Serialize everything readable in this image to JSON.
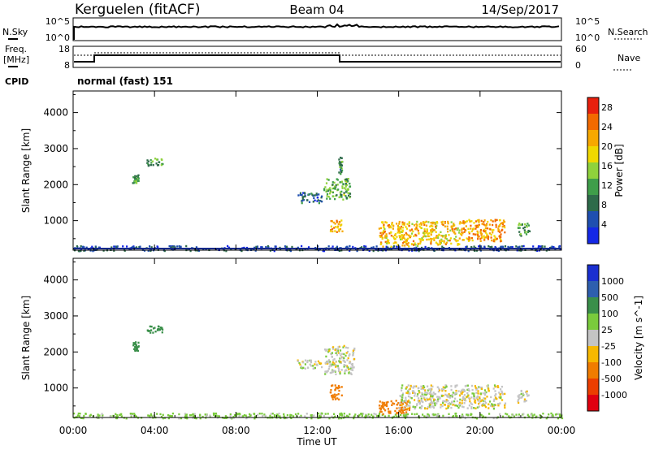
{
  "header": {
    "station": "Kerguelen (fitACF)",
    "beam": "Beam 04",
    "date": "14/Sep/2017"
  },
  "status_panel": {
    "nsky_label": "N.Sky",
    "nsky_ticks": [
      "10^5",
      "10^0"
    ],
    "nsearch_label": "N.Search",
    "nsearch_ticks": [
      "10^5",
      "10^0"
    ],
    "freq_label": "Freq.",
    "freq_unit": "[MHz]",
    "freq_ticks": [
      "18",
      "8"
    ],
    "nave_label": "Nave",
    "nave_ticks": [
      "60",
      "0"
    ],
    "cpid_label": "CPID",
    "cpid_value": "normal (fast) 151"
  },
  "colors": {
    "power": [
      "#1428e6",
      "#1f4fb0",
      "#2e6b4a",
      "#3f9e4a",
      "#8fd23c",
      "#f0d800",
      "#f7a800",
      "#f26a00",
      "#e8200e"
    ],
    "velocity": [
      "#1a2fd0",
      "#2e5fae",
      "#3a8f4a",
      "#7acb3c",
      "#c4c4c4",
      "#f7b800",
      "#f07c00",
      "#ec3e00",
      "#e00010"
    ]
  },
  "chart_data": [
    {
      "type": "heatmap",
      "title": "Power",
      "xlabel": "Time UT",
      "ylabel": "Slant Range [km]",
      "x_ticks": [
        "00:00",
        "04:00",
        "08:00",
        "12:00",
        "16:00",
        "20:00",
        "00:00"
      ],
      "y_ticks": [
        "1000",
        "2000",
        "3000",
        "4000"
      ],
      "x_range": [
        0,
        24
      ],
      "y_range": [
        180,
        4600
      ],
      "colorbar": {
        "label": "Power [dB]",
        "ticks": [
          "4",
          "8",
          "12",
          "16",
          "20",
          "24",
          "28"
        ],
        "range": [
          0,
          30
        ]
      },
      "echo_regions": [
        {
          "t": [
            2.9,
            3.2
          ],
          "r": [
            2050,
            2300
          ],
          "level": 10
        },
        {
          "t": [
            3.6,
            4.4
          ],
          "r": [
            2550,
            2750
          ],
          "level": 11
        },
        {
          "t": [
            0.0,
            24.0
          ],
          "r": [
            180,
            320
          ],
          "level": 4
        },
        {
          "t": [
            11.0,
            12.2
          ],
          "r": [
            1500,
            1800
          ],
          "level": 6
        },
        {
          "t": [
            12.3,
            13.6
          ],
          "r": [
            1600,
            2200
          ],
          "level": 12
        },
        {
          "t": [
            12.6,
            13.2
          ],
          "r": [
            700,
            1100
          ],
          "level": 22
        },
        {
          "t": [
            13.0,
            13.2
          ],
          "r": [
            2300,
            2800
          ],
          "level": 10
        },
        {
          "t": [
            15.0,
            17.0
          ],
          "r": [
            300,
            1000
          ],
          "level": 21
        },
        {
          "t": [
            17.0,
            19.0
          ],
          "r": [
            350,
            1000
          ],
          "level": 20
        },
        {
          "t": [
            19.0,
            21.2
          ],
          "r": [
            450,
            1050
          ],
          "level": 23
        },
        {
          "t": [
            21.8,
            22.4
          ],
          "r": [
            600,
            950
          ],
          "level": 10
        }
      ]
    },
    {
      "type": "heatmap",
      "title": "Velocity",
      "xlabel": "Time UT",
      "ylabel": "Slant Range [km]",
      "x_ticks": [
        "00:00",
        "04:00",
        "08:00",
        "12:00",
        "16:00",
        "20:00",
        "00:00"
      ],
      "y_ticks": [
        "1000",
        "2000",
        "3000",
        "4000"
      ],
      "x_range": [
        0,
        24
      ],
      "y_range": [
        180,
        4600
      ],
      "colorbar": {
        "label": "Velocity [m s^-1]",
        "ticks": [
          "1000",
          "500",
          "100",
          "25",
          "-25",
          "-100",
          "-500",
          "-1000"
        ]
      },
      "echo_regions": [
        {
          "t": [
            2.9,
            3.2
          ],
          "r": [
            2050,
            2300
          ],
          "velocity": 150
        },
        {
          "t": [
            3.6,
            4.4
          ],
          "r": [
            2550,
            2750
          ],
          "velocity": 200
        },
        {
          "t": [
            0.0,
            24.0
          ],
          "r": [
            180,
            320
          ],
          "velocity": 50
        },
        {
          "t": [
            11.0,
            12.2
          ],
          "r": [
            1550,
            1800
          ],
          "velocity": 0
        },
        {
          "t": [
            12.3,
            13.8
          ],
          "r": [
            1400,
            2200
          ],
          "velocity": 0
        },
        {
          "t": [
            12.6,
            13.2
          ],
          "r": [
            700,
            1100
          ],
          "velocity": -150
        },
        {
          "t": [
            15.0,
            16.5
          ],
          "r": [
            300,
            700
          ],
          "velocity": -150
        },
        {
          "t": [
            16.0,
            21.2
          ],
          "r": [
            450,
            1100
          ],
          "velocity": 0
        },
        {
          "t": [
            21.8,
            22.4
          ],
          "r": [
            600,
            950
          ],
          "velocity": 0
        }
      ]
    }
  ]
}
